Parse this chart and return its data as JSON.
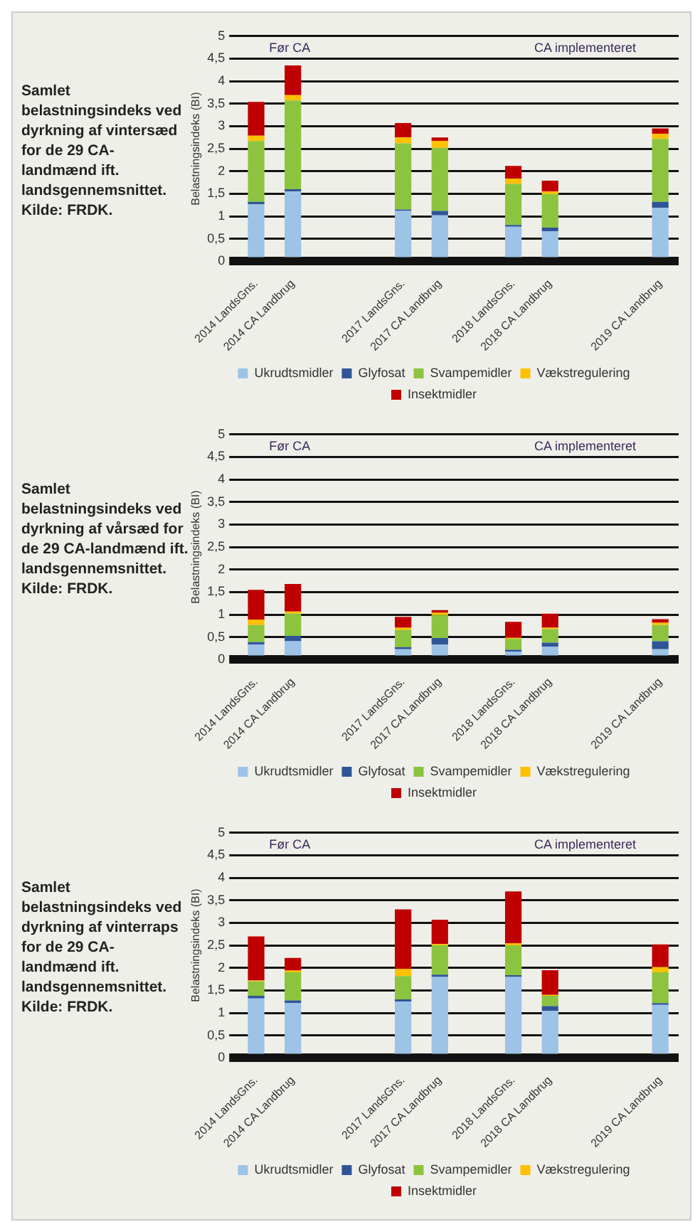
{
  "chart_data": [
    {
      "type": "bar",
      "stacked": true,
      "title": "Samlet belastningsindeks ved dyrkning af vintersæd for de 29 CA-landmænd ift. landsgennemsnittet. Kilde: FRDK.",
      "ylabel": "Belastningsindeks (BI)",
      "categories": [
        "2014 LandsGns.",
        "2014 CA Landbrug",
        null,
        null,
        "2017 LandsGns.",
        "2017 CA Landbrug",
        null,
        "2018 LandsGns.",
        "2018 CA Landbrug",
        null,
        null,
        "2019 CA Landbrug"
      ],
      "ylim": [
        0,
        5
      ],
      "yticks": [
        0,
        {
          "value": 0.5,
          "label": "0,5"
        },
        1,
        {
          "value": 1.5,
          "label": "1,5"
        },
        2,
        {
          "value": 2.5,
          "label": "2,5"
        },
        3,
        {
          "value": 3.5,
          "label": "3,5"
        },
        4,
        {
          "value": 4.5,
          "label": "4,5"
        },
        5
      ],
      "grid": "y",
      "legend": "bottom",
      "annotations": [
        "Før CA",
        "CA implementeret"
      ],
      "series": [
        {
          "name": "Ukrudtsmidler",
          "color": "#9dc3e6",
          "values": [
            1.27,
            1.55,
            null,
            null,
            1.12,
            1.02,
            null,
            0.77,
            0.67,
            null,
            null,
            1.19
          ]
        },
        {
          "name": "Glyfosat",
          "color": "#2f5597",
          "values": [
            0.05,
            0.05,
            null,
            null,
            0.03,
            0.1,
            null,
            0.04,
            0.08,
            null,
            null,
            0.13
          ]
        },
        {
          "name": "Svampemidler",
          "color": "#8cc43f",
          "values": [
            1.35,
            1.97,
            null,
            null,
            1.47,
            1.4,
            null,
            0.91,
            0.74,
            null,
            null,
            1.4
          ]
        },
        {
          "name": "Vækstregulering",
          "color": "#ffc000",
          "values": [
            0.12,
            0.12,
            null,
            null,
            0.13,
            0.15,
            null,
            0.12,
            0.06,
            null,
            null,
            0.11
          ]
        },
        {
          "name": "Insektmidler",
          "color": "#c00000",
          "values": [
            0.75,
            0.66,
            null,
            null,
            0.32,
            0.08,
            null,
            0.28,
            0.24,
            null,
            null,
            0.12
          ]
        }
      ]
    },
    {
      "type": "bar",
      "stacked": true,
      "title": "Samlet belastningsindeks ved dyrkning af vårsæd for de 29 CA-landmænd ift. landsgennemsnittet. Kilde: FRDK.",
      "ylabel": "Belastningsindeks (BI)",
      "categories": [
        "2014 LandsGns.",
        "2014 CA Landbrug",
        null,
        null,
        "2017 LandsGns.",
        "2017 CA Landbrug",
        null,
        "2018 LandsGns.",
        "2018 CA Landbrug",
        null,
        null,
        "2019 CA Landbrug"
      ],
      "ylim": [
        0,
        5
      ],
      "yticks": [
        0,
        {
          "value": 0.5,
          "label": "0,5"
        },
        1,
        {
          "value": 1.5,
          "label": "1,5"
        },
        2,
        {
          "value": 2.5,
          "label": "2,5"
        },
        3,
        {
          "value": 3.5,
          "label": "3,5"
        },
        4,
        {
          "value": 4.5,
          "label": "4,5"
        },
        5
      ],
      "grid": "y",
      "legend": "bottom",
      "annotations": [
        "Før CA",
        "CA implementeret"
      ],
      "series": [
        {
          "name": "Ukrudtsmidler",
          "color": "#9dc3e6",
          "values": [
            0.34,
            0.41,
            null,
            null,
            0.23,
            0.34,
            null,
            0.18,
            0.29,
            null,
            null,
            0.23
          ]
        },
        {
          "name": "Glyfosat",
          "color": "#2f5597",
          "values": [
            0.05,
            0.12,
            null,
            null,
            0.05,
            0.14,
            null,
            0.04,
            0.09,
            null,
            null,
            0.18
          ]
        },
        {
          "name": "Svampemidler",
          "color": "#8cc43f",
          "values": [
            0.38,
            0.49,
            null,
            null,
            0.38,
            0.51,
            null,
            0.24,
            0.3,
            null,
            null,
            0.36
          ]
        },
        {
          "name": "Vækstregulering",
          "color": "#ffc000",
          "values": [
            0.12,
            0.05,
            null,
            null,
            0.05,
            0.05,
            null,
            0.03,
            0.03,
            null,
            null,
            0.05
          ]
        },
        {
          "name": "Insektmidler",
          "color": "#c00000",
          "values": [
            0.66,
            0.61,
            null,
            null,
            0.24,
            0.06,
            null,
            0.35,
            0.31,
            null,
            null,
            0.08
          ]
        }
      ]
    },
    {
      "type": "bar",
      "stacked": true,
      "title": "Samlet belastningsindeks ved dyrkning af vinterraps for de 29 CA-landmænd ift. landsgennemsnittet. Kilde: FRDK.",
      "ylabel": "Belastningsindeks (BI)",
      "categories": [
        "2014 LandsGns.",
        "2014 CA Landbrug",
        null,
        null,
        "2017 LandsGns.",
        "2017 CA Landbrug",
        null,
        "2018 LandsGns.",
        "2018 CA Landbrug",
        null,
        null,
        "2019 CA Landbrug"
      ],
      "ylim": [
        0,
        5
      ],
      "yticks": [
        0,
        {
          "value": 0.5,
          "label": "0,5"
        },
        1,
        {
          "value": 1.5,
          "label": "1,5"
        },
        2,
        {
          "value": 2.5,
          "label": "2,5"
        },
        3,
        {
          "value": 3.5,
          "label": "3,5"
        },
        4,
        {
          "value": 4.5,
          "label": "4,5"
        },
        5
      ],
      "grid": "y",
      "legend": "bottom",
      "annotations": [
        "Før CA",
        "CA implementeret"
      ],
      "series": [
        {
          "name": "Ukrudtsmidler",
          "color": "#9dc3e6",
          "values": [
            1.32,
            1.22,
            null,
            null,
            1.25,
            1.8,
            null,
            1.8,
            1.05,
            null,
            null,
            1.18
          ]
        },
        {
          "name": "Glyfosat",
          "color": "#2f5597",
          "values": [
            0.06,
            0.06,
            null,
            null,
            0.05,
            0.05,
            null,
            0.04,
            0.1,
            null,
            null,
            0.04
          ]
        },
        {
          "name": "Svampemidler",
          "color": "#8cc43f",
          "values": [
            0.32,
            0.62,
            null,
            null,
            0.52,
            0.65,
            null,
            0.66,
            0.23,
            null,
            null,
            0.68
          ]
        },
        {
          "name": "Vækstregulering",
          "color": "#ffc000",
          "values": [
            0.02,
            0.04,
            null,
            null,
            0.16,
            0.03,
            null,
            0.05,
            0.02,
            null,
            null,
            0.12
          ]
        },
        {
          "name": "Insektmidler",
          "color": "#c00000",
          "values": [
            0.98,
            0.28,
            null,
            null,
            1.32,
            0.54,
            null,
            1.15,
            0.55,
            null,
            null,
            0.5
          ]
        }
      ]
    }
  ]
}
